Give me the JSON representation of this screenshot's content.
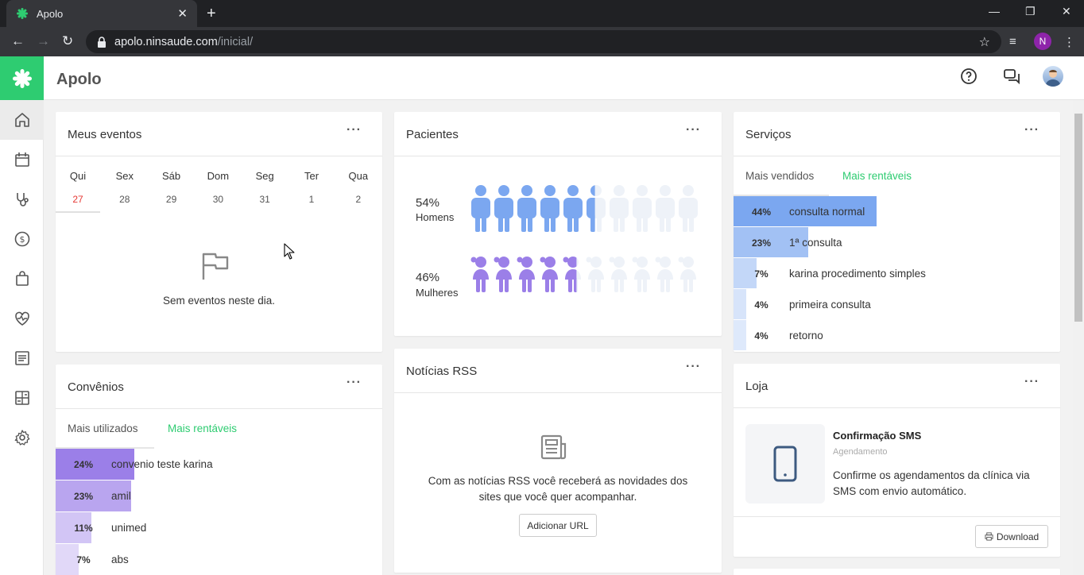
{
  "browser": {
    "tab_title": "Apolo",
    "url_domain": "apolo.ninsaude.com",
    "url_path": "/inicial/",
    "profile_initial": "N"
  },
  "app": {
    "title": "Apolo",
    "brand_color": "#2ecc71"
  },
  "sidebar": {
    "items": [
      {
        "icon": "home-icon"
      },
      {
        "icon": "calendar-icon"
      },
      {
        "icon": "stethoscope-icon"
      },
      {
        "icon": "dollar-icon"
      },
      {
        "icon": "bag-icon"
      },
      {
        "icon": "heart-pulse-icon"
      },
      {
        "icon": "list-icon"
      },
      {
        "icon": "dashboard-icon"
      },
      {
        "icon": "gear-icon"
      }
    ]
  },
  "events": {
    "title": "Meus eventos",
    "days": [
      {
        "day": "Qui",
        "date": "27"
      },
      {
        "day": "Sex",
        "date": "28"
      },
      {
        "day": "Sáb",
        "date": "29"
      },
      {
        "day": "Dom",
        "date": "30"
      },
      {
        "day": "Seg",
        "date": "31"
      },
      {
        "day": "Ter",
        "date": "1"
      },
      {
        "day": "Qua",
        "date": "2"
      }
    ],
    "empty": "Sem eventos neste dia."
  },
  "patients": {
    "title": "Pacientes",
    "men": {
      "pct": "54%",
      "label": "Homens",
      "fraction": 0.54,
      "color": "#7ba7f0"
    },
    "women": {
      "pct": "46%",
      "label": "Mulheres",
      "fraction": 0.46,
      "color": "#9b7fe8"
    }
  },
  "services": {
    "title": "Serviços",
    "tabs": [
      "Mais vendidos",
      "Mais rentáveis"
    ],
    "rows": [
      {
        "pct": "44%",
        "label": "consulta normal",
        "value": 44
      },
      {
        "pct": "23%",
        "label": "1ª consulta",
        "value": 23
      },
      {
        "pct": "7%",
        "label": "karina procedimento simples",
        "value": 7
      },
      {
        "pct": "4%",
        "label": "primeira consulta",
        "value": 4
      },
      {
        "pct": "4%",
        "label": "retorno",
        "value": 4
      }
    ]
  },
  "convenios": {
    "title": "Convênios",
    "tabs": [
      "Mais utilizados",
      "Mais rentáveis"
    ],
    "rows": [
      {
        "pct": "24%",
        "label": "convenio teste karina",
        "value": 24
      },
      {
        "pct": "23%",
        "label": "amil",
        "value": 23
      },
      {
        "pct": "11%",
        "label": "unimed",
        "value": 11
      },
      {
        "pct": "7%",
        "label": "abs",
        "value": 7
      }
    ]
  },
  "rss": {
    "title": "Notícias RSS",
    "message_line1": "Com as notícias RSS você receberá as novidades dos",
    "message_line2": "sites que você quer acompanhar.",
    "button": "Adicionar URL"
  },
  "store": {
    "title": "Loja",
    "product_title": "Confirmação SMS",
    "product_category": "Agendamento",
    "product_desc_line1": "Confirme os agendamentos da clínica via",
    "product_desc_line2": "SMS com envio automático.",
    "download": "Download"
  },
  "colors": {
    "accent_green": "#2ecc71",
    "today_red": "#e53935",
    "service_bar": "#7ba7f0",
    "convenio_bar": "#9b7fe8"
  }
}
